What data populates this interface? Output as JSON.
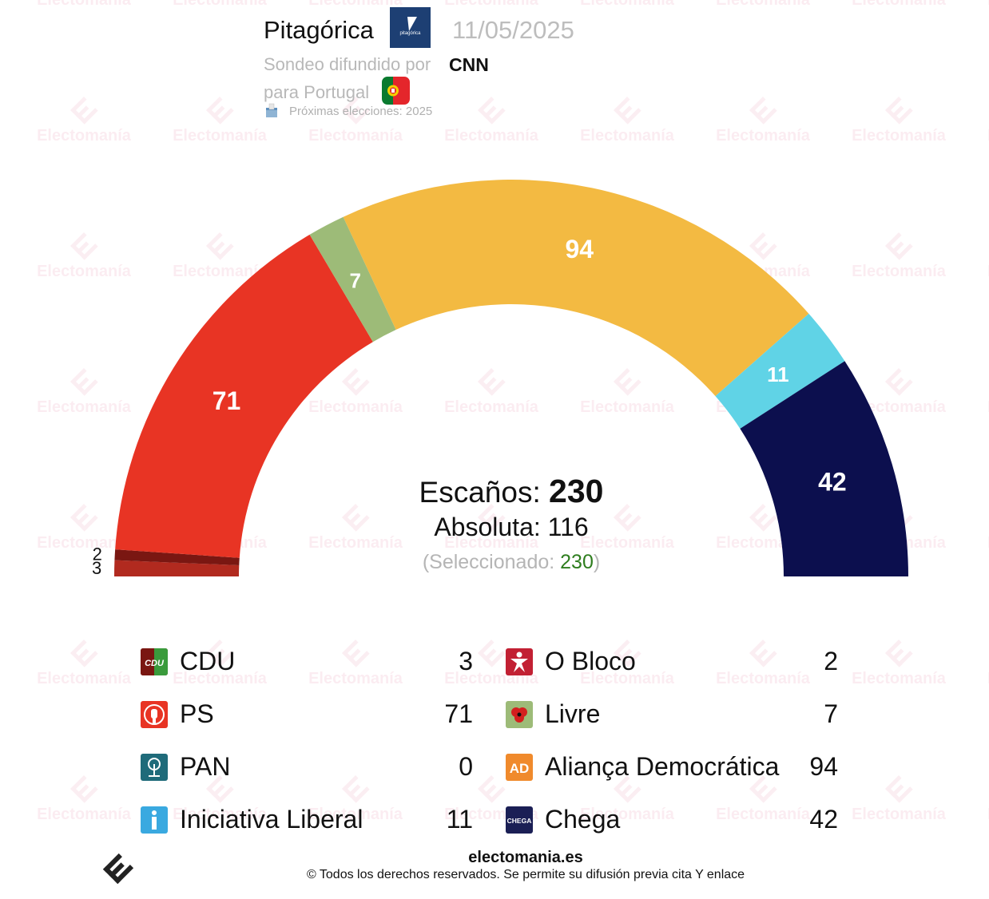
{
  "header": {
    "pollster": "Pitagórica",
    "pollster_logo_text": "pitagórica",
    "date": "11/05/2025",
    "published_by_label": "Sondeo difundido por",
    "media": "CNN",
    "country_label": "para Portugal",
    "next_election": "Próximas elecciones: 2025"
  },
  "summary": {
    "seats_label": "Escaños:",
    "seats_total": "230",
    "majority_label": "Absoluta: 116",
    "selected_prefix": "(Seleccionado: ",
    "selected_value": "230",
    "selected_suffix": ")"
  },
  "chart_data": {
    "type": "pie",
    "subtype": "hemicycle",
    "total_seats": 230,
    "majority": 116,
    "parties": [
      {
        "name": "CDU",
        "seats": 3,
        "color": "#b12a1f",
        "label": "3"
      },
      {
        "name": "O Bloco",
        "seats": 2,
        "color": "#7a1712",
        "label": "2"
      },
      {
        "name": "PS",
        "seats": 71,
        "color": "#e83424",
        "label": "71"
      },
      {
        "name": "Livre",
        "seats": 7,
        "color": "#9dbb78",
        "label": "7"
      },
      {
        "name": "Aliança Democrática",
        "seats": 94,
        "color": "#f3ba42",
        "label": "94"
      },
      {
        "name": "Iniciativa Liberal",
        "seats": 11,
        "color": "#60d3e6",
        "label": "11"
      },
      {
        "name": "Chega",
        "seats": 42,
        "color": "#0c0f4e",
        "label": "42"
      }
    ]
  },
  "legend": {
    "left": [
      {
        "name": "CDU",
        "value": "3",
        "icon": "cdu-logo-icon",
        "color": "#7a1712"
      },
      {
        "name": "PS",
        "value": "71",
        "icon": "ps-logo-icon",
        "color": "#e83424"
      },
      {
        "name": "PAN",
        "value": "0",
        "icon": "pan-logo-icon",
        "color": "#1f6b7a"
      },
      {
        "name": "Iniciativa Liberal",
        "value": "11",
        "icon": "il-logo-icon",
        "color": "#3aa9e0"
      }
    ],
    "right": [
      {
        "name": "O Bloco",
        "value": "2",
        "icon": "bloco-logo-icon",
        "color": "#c22033"
      },
      {
        "name": "Livre",
        "value": "7",
        "icon": "livre-logo-icon",
        "color": "#9dbb78"
      },
      {
        "name": "Aliança Democrática",
        "value": "94",
        "icon": "ad-logo-icon",
        "color": "#f08a2c"
      },
      {
        "name": "Chega",
        "value": "42",
        "icon": "chega-logo-icon",
        "color": "#1b1f55"
      }
    ]
  },
  "watermark": {
    "text": "Electomanía"
  },
  "footer": {
    "site": "electomania.es",
    "copyright": "© Todos los derechos reservados. Se permite su difusión previa cita Y enlace"
  }
}
